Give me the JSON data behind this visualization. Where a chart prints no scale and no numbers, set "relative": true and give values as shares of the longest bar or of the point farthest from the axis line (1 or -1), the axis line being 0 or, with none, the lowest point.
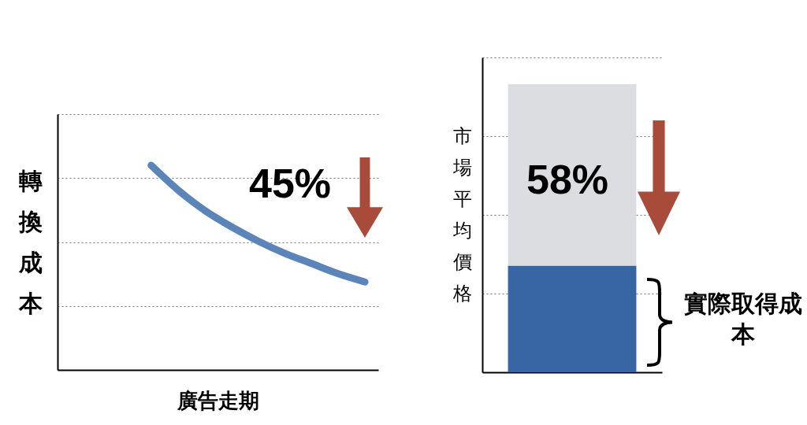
{
  "chart_data": [
    {
      "type": "line",
      "relative": true,
      "categories": [
        null,
        null,
        null,
        null,
        null,
        null,
        null,
        null,
        null,
        null,
        null,
        null
      ],
      "series": [
        {
          "color": "#5b84b8",
          "values": [
            null,
            null,
            null,
            1,
            0.88,
            0.78,
            0.7,
            0.63,
            0.57,
            0.52,
            0.47,
            0.43
          ]
        }
      ],
      "xlabel": "廣告走期",
      "ylabel": "轉換成本",
      "grid": "y",
      "line_style": "solid",
      "annotations": [
        "45%"
      ]
    },
    {
      "type": "bar",
      "relative": true,
      "stacked": true,
      "categories": [
        null
      ],
      "series": [
        {
          "color": "#3866a5",
          "values": [
            0.37
          ]
        },
        {
          "color": "#dcdde0",
          "values": [
            0.63
          ]
        }
      ],
      "ylabel": "市場平均價格",
      "grid": "y",
      "annotations": [
        "58%",
        "實際取得成本"
      ]
    }
  ]
}
